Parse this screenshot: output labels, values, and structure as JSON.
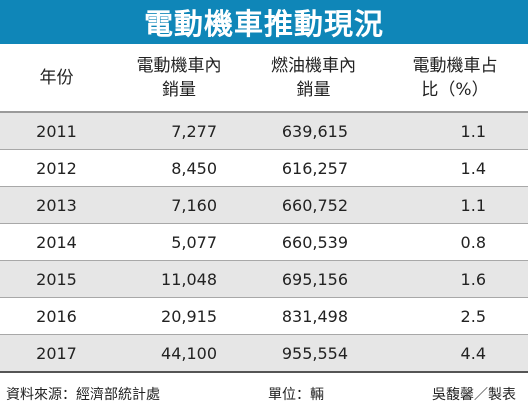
{
  "title": "電動機車推動現況",
  "chart_data": {
    "type": "table",
    "title": "電動機車推動現況",
    "columns": [
      {
        "line1": "年份",
        "line2": ""
      },
      {
        "line1": "電動機車內",
        "line2": "銷量"
      },
      {
        "line1": "燃油機車內",
        "line2": "銷量"
      },
      {
        "line1": "電動機車占",
        "line2": "比（%）"
      }
    ],
    "rows": [
      {
        "year": "2011",
        "ev_sales": "7,277",
        "fuel_sales": "639,615",
        "ev_share": "1.1"
      },
      {
        "year": "2012",
        "ev_sales": "8,450",
        "fuel_sales": "616,257",
        "ev_share": "1.4"
      },
      {
        "year": "2013",
        "ev_sales": "7,160",
        "fuel_sales": "660,752",
        "ev_share": "1.1"
      },
      {
        "year": "2014",
        "ev_sales": "5,077",
        "fuel_sales": "660,539",
        "ev_share": "0.8"
      },
      {
        "year": "2015",
        "ev_sales": "11,048",
        "fuel_sales": "695,156",
        "ev_share": "1.6"
      },
      {
        "year": "2016",
        "ev_sales": "20,915",
        "fuel_sales": "831,498",
        "ev_share": "2.5"
      },
      {
        "year": "2017",
        "ev_sales": "44,100",
        "fuel_sales": "955,554",
        "ev_share": "4.4"
      }
    ]
  },
  "footer": {
    "source": "資料來源：經濟部統計處",
    "unit": "單位：輛",
    "credit": "吳馥馨／製表"
  },
  "colors": {
    "title_bar": "#0f86b8",
    "alt_row": "#e6e6e6"
  }
}
